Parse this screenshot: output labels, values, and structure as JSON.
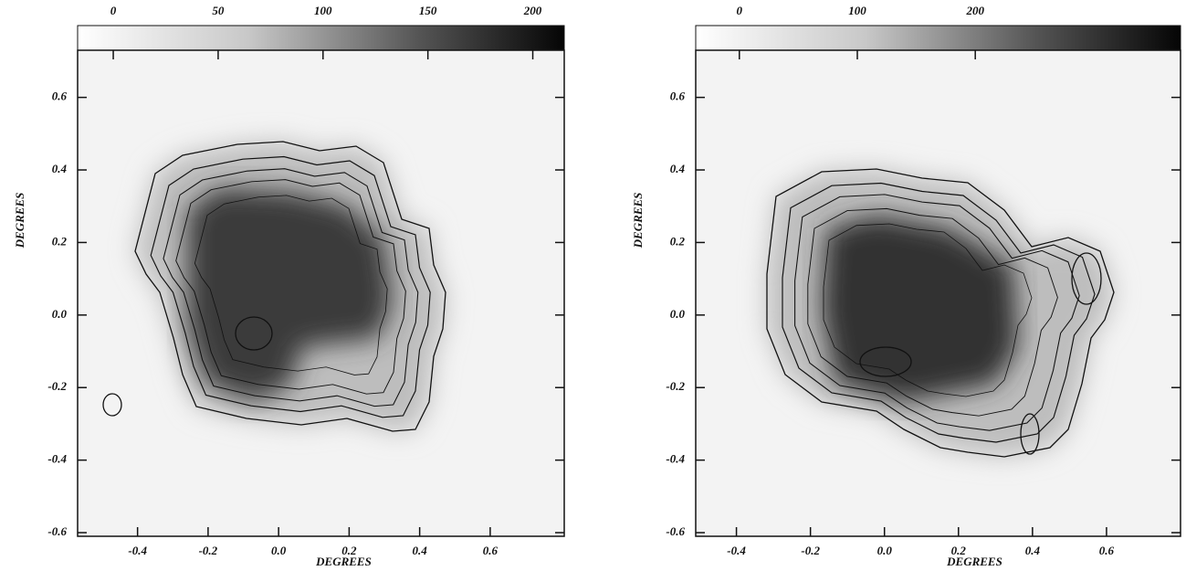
{
  "chart_data": [
    {
      "type": "heatmap",
      "xlabel": "DEGREES",
      "ylabel": "DEGREES",
      "xlim": [
        -0.57,
        0.81
      ],
      "ylim": [
        -0.61,
        0.73
      ],
      "xticks": [
        -0.4,
        -0.2,
        {
          "value": 0,
          "label": "0.0"
        },
        0.2,
        0.4,
        0.6
      ],
      "yticks": [
        0.6,
        0.4,
        0.2,
        {
          "value": 0,
          "label": "0.0"
        },
        -0.2,
        -0.4,
        -0.6
      ],
      "colorbar_lim": [
        -17,
        215
      ],
      "colorbar_ticks": [
        0,
        50,
        100,
        150,
        200
      ],
      "colormap": "gray_r"
    },
    {
      "type": "heatmap",
      "xlabel": "DEGREES",
      "ylabel": "DEGREES",
      "xlim": [
        -0.51,
        0.8
      ],
      "ylim": [
        -0.61,
        0.73
      ],
      "xticks": [
        -0.4,
        -0.2,
        {
          "value": 0,
          "label": "0.0"
        },
        0.2,
        0.4,
        0.6
      ],
      "yticks": [
        0.6,
        0.4,
        0.2,
        {
          "value": 0,
          "label": "0.0"
        },
        -0.2,
        -0.4,
        -0.6
      ],
      "colorbar_lim": [
        -37,
        374
      ],
      "colorbar_ticks": [
        0,
        100,
        200
      ],
      "colormap": "gray_r"
    }
  ]
}
